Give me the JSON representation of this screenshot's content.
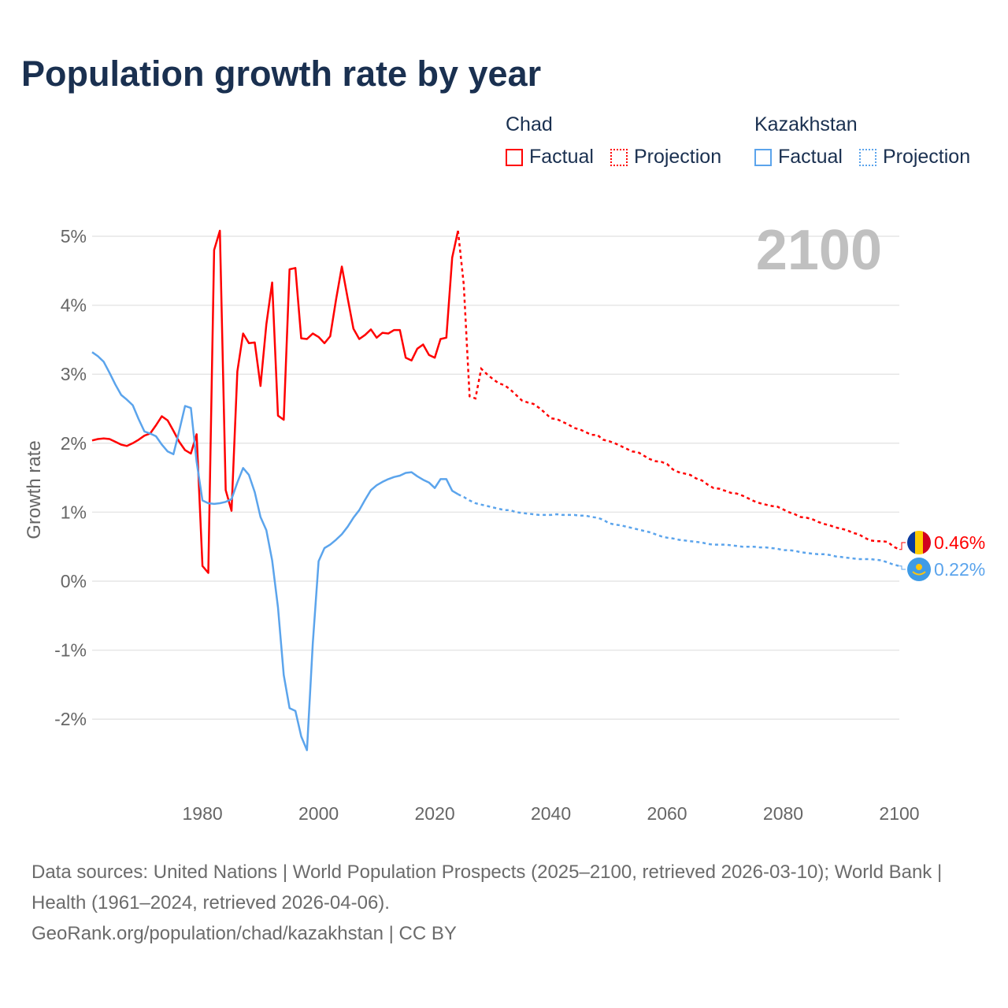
{
  "title": "Population growth rate by year",
  "legend": {
    "groups": [
      {
        "country": "Chad",
        "factual": "Factual",
        "projection": "Projection",
        "color": "#ff0000"
      },
      {
        "country": "Kazakhstan",
        "factual": "Factual",
        "projection": "Projection",
        "color": "#5ba4ec"
      }
    ]
  },
  "chart_data": {
    "type": "line",
    "title": "Population growth rate by year",
    "xlabel": "",
    "ylabel": "Growth rate",
    "xlim": [
      1961,
      2100
    ],
    "ylim": [
      -2.9,
      5.2
    ],
    "x_ticks": [
      1980,
      2000,
      2020,
      2040,
      2060,
      2080,
      2100
    ],
    "y_ticks": [
      5,
      4,
      3,
      2,
      1,
      0,
      -1,
      -2
    ],
    "y_tick_labels": [
      "5%",
      "4%",
      "3%",
      "2%",
      "1%",
      "0%",
      "-1%",
      "-2%"
    ],
    "grid": true,
    "current_year_label": "2100",
    "series": [
      {
        "name": "Chad",
        "color": "#ff0000",
        "end_label": "0.46%",
        "factual_start": 1961,
        "factual": [
          2.04,
          2.06,
          2.07,
          2.06,
          2.02,
          1.98,
          1.96,
          2.0,
          2.05,
          2.11,
          2.14,
          2.26,
          2.39,
          2.33,
          2.18,
          2.02,
          1.9,
          1.85,
          2.13,
          0.22,
          0.12,
          4.8,
          5.08,
          1.32,
          1.02,
          3.04,
          3.59,
          3.45,
          3.46,
          2.83,
          3.72,
          4.33,
          2.4,
          2.34,
          4.52,
          4.54,
          3.52,
          3.51,
          3.59,
          3.54,
          3.45,
          3.55,
          4.08,
          4.56,
          4.1,
          3.66,
          3.51,
          3.57,
          3.65,
          3.53,
          3.6,
          3.59,
          3.64,
          3.64,
          3.24,
          3.2,
          3.37,
          3.43,
          3.28,
          3.24,
          3.51,
          3.53,
          4.69,
          5.08
        ],
        "projection_start": 2025,
        "projection": [
          4.3,
          2.68,
          2.65,
          3.08,
          3.0,
          2.93,
          2.87,
          2.84,
          2.78,
          2.7,
          2.62,
          2.59,
          2.57,
          2.51,
          2.44,
          2.36,
          2.35,
          2.31,
          2.27,
          2.22,
          2.2,
          2.16,
          2.12,
          2.12,
          2.05,
          2.03,
          2.0,
          1.96,
          1.92,
          1.88,
          1.87,
          1.82,
          1.77,
          1.74,
          1.73,
          1.7,
          1.62,
          1.58,
          1.56,
          1.54,
          1.49,
          1.46,
          1.4,
          1.35,
          1.34,
          1.31,
          1.28,
          1.27,
          1.24,
          1.2,
          1.16,
          1.13,
          1.11,
          1.09,
          1.08,
          1.04,
          1.0,
          0.97,
          0.93,
          0.92,
          0.9,
          0.86,
          0.83,
          0.81,
          0.78,
          0.76,
          0.74,
          0.7,
          0.68,
          0.63,
          0.59,
          0.58,
          0.58,
          0.57,
          0.5,
          0.46
        ]
      },
      {
        "name": "Kazakhstan",
        "color": "#5ba4ec",
        "end_label": "0.22%",
        "factual_start": 1961,
        "factual": [
          3.32,
          3.26,
          3.18,
          3.02,
          2.85,
          2.7,
          2.63,
          2.55,
          2.35,
          2.17,
          2.14,
          2.1,
          1.98,
          1.88,
          1.84,
          2.18,
          2.54,
          2.51,
          1.73,
          1.17,
          1.13,
          1.12,
          1.13,
          1.15,
          1.19,
          1.43,
          1.64,
          1.54,
          1.29,
          0.93,
          0.74,
          0.3,
          -0.38,
          -1.36,
          -1.84,
          -1.88,
          -2.25,
          -2.45,
          -0.9,
          0.29,
          0.48,
          0.53,
          0.6,
          0.68,
          0.79,
          0.92,
          1.03,
          1.18,
          1.32,
          1.39,
          1.44,
          1.48,
          1.51,
          1.53,
          1.57,
          1.58,
          1.52,
          1.47,
          1.43,
          1.35,
          1.48,
          1.48,
          1.31,
          1.26
        ],
        "projection_start": 2025,
        "projection": [
          1.22,
          1.17,
          1.13,
          1.11,
          1.09,
          1.07,
          1.05,
          1.03,
          1.03,
          1.0,
          0.99,
          0.98,
          0.97,
          0.96,
          0.96,
          0.96,
          0.97,
          0.96,
          0.96,
          0.96,
          0.95,
          0.95,
          0.93,
          0.92,
          0.89,
          0.84,
          0.82,
          0.81,
          0.79,
          0.77,
          0.75,
          0.73,
          0.71,
          0.68,
          0.65,
          0.63,
          0.62,
          0.6,
          0.59,
          0.58,
          0.57,
          0.56,
          0.54,
          0.53,
          0.53,
          0.53,
          0.52,
          0.51,
          0.5,
          0.5,
          0.5,
          0.49,
          0.49,
          0.48,
          0.47,
          0.45,
          0.45,
          0.44,
          0.42,
          0.41,
          0.4,
          0.39,
          0.39,
          0.38,
          0.36,
          0.35,
          0.34,
          0.33,
          0.32,
          0.32,
          0.32,
          0.31,
          0.3,
          0.27,
          0.24,
          0.22
        ]
      }
    ]
  },
  "footer": {
    "sources": "Data sources: United Nations | World Population Prospects (2025–2100, retrieved 2026-03-10); World Bank | Health (1961–2024, retrieved 2026-04-06).",
    "credit": "GeoRank.org/population/chad/kazakhstan | CC BY"
  }
}
